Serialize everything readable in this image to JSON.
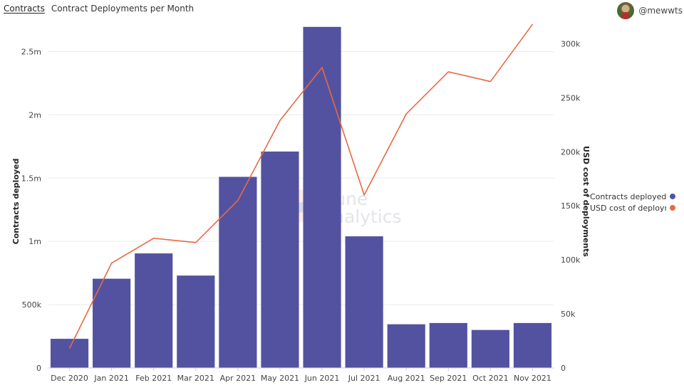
{
  "header": {
    "tab_label": "Contracts",
    "title": "Contract Deployments per Month"
  },
  "author": {
    "handle": "@mewwts",
    "avatar_icon": "user-avatar-icon"
  },
  "watermark": {
    "line1": "Dune",
    "line2": "Analytics"
  },
  "colors": {
    "bars": "#5352a0",
    "line": "#ea6842",
    "grid": "#ebebeb",
    "axis_text": "#444444"
  },
  "chart_data": {
    "type": "bar",
    "categories": [
      "Dec 2020",
      "Jan 2021",
      "Feb 2021",
      "Mar 2021",
      "Apr 2021",
      "May 2021",
      "Jun 2021",
      "Jul 2021",
      "Aug 2021",
      "Sep 2021",
      "Oct 2021",
      "Nov 2021"
    ],
    "series": [
      {
        "name": "Contracts deployed",
        "type": "bar",
        "axis": "left",
        "values": [
          230000,
          705000,
          905000,
          730000,
          1510000,
          1710000,
          2695000,
          1040000,
          345000,
          355000,
          300000,
          355000
        ]
      },
      {
        "name": "USD cost of deployments",
        "type": "line",
        "axis": "right",
        "values": [
          18000,
          97000,
          120000,
          116000,
          155000,
          229000,
          278000,
          160000,
          235000,
          274000,
          265000,
          318000
        ]
      }
    ],
    "y_left": {
      "label": "Contracts deployed",
      "lim": [
        0,
        2750000
      ],
      "ticks": [
        0,
        500000,
        1000000,
        1500000,
        2000000,
        2500000
      ],
      "tick_labels": [
        "0",
        "500k",
        "1m",
        "1.5m",
        "2m",
        "2.5m"
      ]
    },
    "y_right": {
      "label": "USD cost of deployments",
      "lim": [
        0,
        322000
      ],
      "ticks": [
        0,
        50000,
        100000,
        150000,
        200000,
        250000,
        300000
      ],
      "tick_labels": [
        "0",
        "50k",
        "100k",
        "150k",
        "200k",
        "250k",
        "300k"
      ]
    },
    "grid": true,
    "legend": {
      "position": "right",
      "entries": [
        "Contracts deployed",
        "USD cost of deployme"
      ]
    }
  }
}
